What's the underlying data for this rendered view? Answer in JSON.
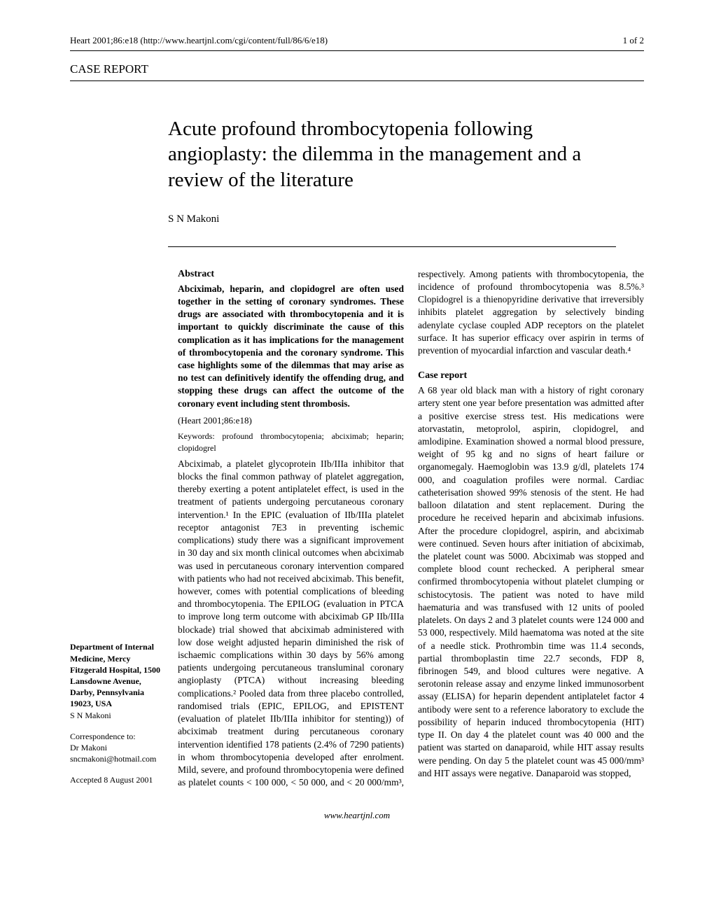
{
  "header": {
    "journal_ref": "Heart 2001;86:e18 (http://www.heartjnl.com/cgi/content/full/86/6/e18)",
    "page_num": "1 of 2"
  },
  "section_label": "CASE REPORT",
  "title": "Acute profound thrombocytopenia following angioplasty: the dilemma in the management and a review of the literature",
  "authors": "S N Makoni",
  "abstract": {
    "heading": "Abstract",
    "body": "Abciximab, heparin, and clopidogrel are often used together in the setting of coronary syndromes. These drugs are associated with thrombocytopenia and it is important to quickly discriminate the cause of this complication as it has implications for the management of thrombocytopenia and the coronary syndrome. This case highlights some of the dilemmas that may arise as no test can definitively identify the offending drug, and stopping these drugs can affect the outcome of the coronary event including stent thrombosis.",
    "citation": "(Heart 2001;86:e18)"
  },
  "keywords": "Keywords: profound thrombocytopenia; abciximab; heparin; clopidogrel",
  "intro": "Abciximab, a platelet glycoprotein IIb/IIIa inhibitor that blocks the final common pathway of platelet aggregation, thereby exerting a potent antiplatelet effect, is used in the treatment of patients undergoing percutaneous coronary intervention.¹ In the EPIC (evaluation of IIb/IIIa platelet receptor antagonist 7E3 in preventing ischemic complications) study there was a significant improvement in 30 day and six month clinical outcomes when abciximab was used in percutaneous coronary intervention compared with patients who had not received abciximab. This benefit, however, comes with potential complications of bleeding and thrombocytopenia. The EPILOG (evaluation in PTCA to improve long term outcome with abciximab GP IIb/IIIa blockade) trial showed that abciximab administered with low dose weight adjusted heparin diminished the risk of ischaemic complications within 30 days by 56% among patients undergoing percutaneous transluminal coronary angioplasty (PTCA) without increasing bleeding complications.² Pooled data from three placebo controlled, randomised trials (EPIC, EPILOG, and EPISTENT (evaluation of platelet IIb/IIIa inhibitor for stenting)) of abciximab treatment during percutaneous coronary intervention identified 178 patients (2.4% of 7290 patients) in whom thrombocytopenia developed after enrolment. Mild, severe, and profound thrombocytopenia were defined as platelet counts < 100 000, < 50 000, and < 20 000/mm³, respectively. Among patients with thrombocytopenia, the incidence of profound thrombocytopenia was 8.5%.³ Clopidogrel is a thienopyridine derivative that irreversibly inhibits platelet aggregation by selectively binding adenylate cyclase coupled ADP receptors on the platelet surface. It has superior efficacy over aspirin in terms of prevention of myocardial infarction and vascular death.⁴",
  "case_report": {
    "heading": "Case report",
    "body": "A 68 year old black man with a history of right coronary artery stent one year before presentation was admitted after a positive exercise stress test. His medications were atorvastatin, metoprolol, aspirin, clopidogrel, and amlodipine. Examination showed a normal blood pressure, weight of 95 kg and no signs of heart failure or organomegaly. Haemoglobin was 13.9 g/dl, platelets 174 000, and coagulation profiles were normal. Cardiac catheterisation showed 99% stenosis of the stent. He had balloon dilatation and stent replacement. During the procedure he received heparin and abciximab infusions. After the procedure clopidogrel, aspirin, and abciximab were continued. Seven hours after initiation of abciximab, the platelet count was 5000. Abciximab was stopped and complete blood count rechecked. A peripheral smear confirmed thrombocytopenia without platelet clumping or schistocytosis. The patient was noted to have mild haematuria and was transfused with 12 units of pooled platelets. On days 2 and 3 platelet counts were 124 000 and 53 000, respectively. Mild haematoma was noted at the site of a needle stick. Prothrombin time was 11.4 seconds, partial thromboplastin time 22.7 seconds, FDP 8, fibrinogen 549, and blood cultures were negative. A serotonin release assay and enzyme linked immunosorbent assay (ELISA) for heparin dependent antiplatelet factor 4 antibody were sent to a reference laboratory to exclude the possibility of heparin induced thrombocytopenia (HIT) type II. On day 4 the platelet count was 40 000 and the patient was started on danaparoid, while HIT assay results were pending. On day 5 the platelet count was 45 000/mm³ and HIT assays were negative. Danaparoid was stopped,"
  },
  "affiliation": {
    "dept": "Department of Internal Medicine, Mercy Fitzgerald Hospital, 1500 Lansdowne Avenue, Darby, Pennsylvania 19023, USA",
    "name": "S N Makoni"
  },
  "correspondence": {
    "label": "Correspondence to:",
    "name": "Dr Makoni",
    "email": "sncmakoni@hotmail.com"
  },
  "accepted": "Accepted 8 August 2001",
  "footer": "www.heartjnl.com"
}
